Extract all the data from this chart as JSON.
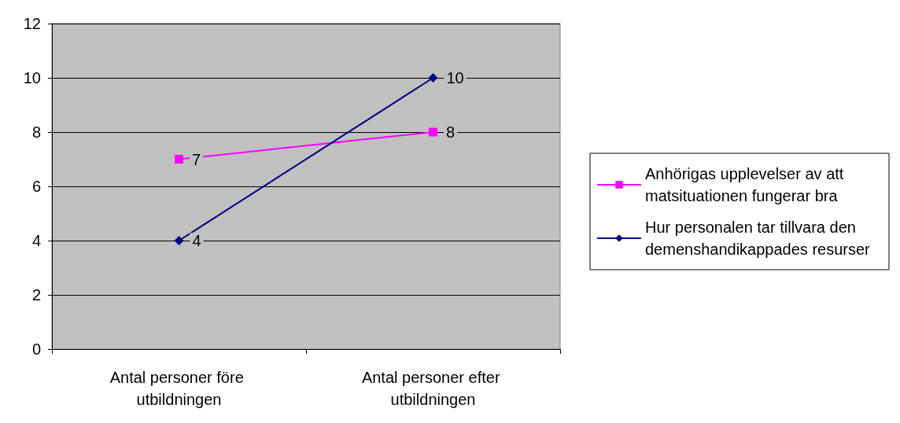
{
  "chart_data": {
    "type": "line",
    "categories": [
      "Antal personer före utbildningen",
      "Antal personer efter utbildningen"
    ],
    "series": [
      {
        "name": "Anhörigas upplevelser av att matsituationen fungerar bra",
        "color": "#ff00ff",
        "values": [
          7,
          8
        ],
        "marker": "square"
      },
      {
        "name": "Hur personalen tar tillvara den demenshandikappades resurser",
        "color": "#000080",
        "values": [
          4,
          10
        ],
        "marker": "diamond"
      }
    ],
    "ylim": [
      0,
      12
    ],
    "yticks": [
      0,
      2,
      4,
      6,
      8,
      10,
      12
    ],
    "grid": "y",
    "legend": "right",
    "data_labels": true,
    "line_style": "solid"
  }
}
